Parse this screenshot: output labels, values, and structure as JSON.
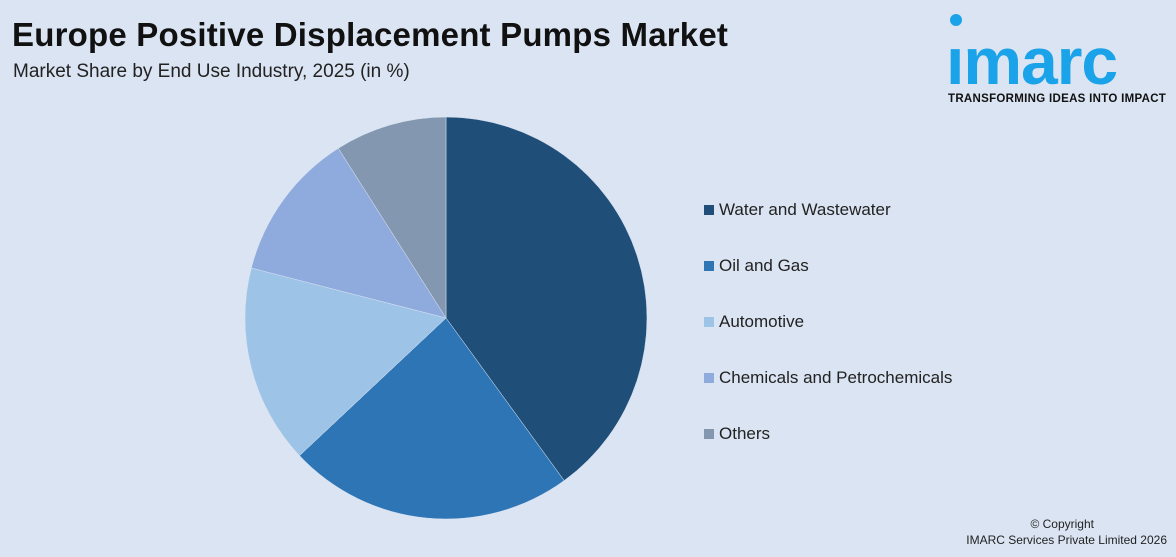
{
  "header": {
    "title": "Europe Positive Displacement Pumps Market",
    "subtitle": "Market Share by End Use Industry, 2025 (in %)"
  },
  "brand": {
    "logo_text": "imarc",
    "tagline": "TRANSFORMING IDEAS INTO IMPACT",
    "logo_color": "#1aa3e8"
  },
  "chart_data": {
    "type": "pie",
    "title": "Europe Positive Displacement Pumps Market",
    "subtitle": "Market Share by End Use Industry, 2025 (in %)",
    "categories": [
      "Water and Wastewater",
      "Oil and Gas",
      "Automotive",
      "Chemicals and Petrochemicals",
      "Others"
    ],
    "values": [
      40,
      23,
      16,
      12,
      9
    ],
    "colors": [
      "#1f4e79",
      "#2e75b6",
      "#9dc3e6",
      "#8faadc",
      "#8497b0"
    ],
    "legend_position": "right"
  },
  "footer": {
    "copyright": "© Copyright",
    "company": "IMARC Services Private Limited 2026"
  }
}
